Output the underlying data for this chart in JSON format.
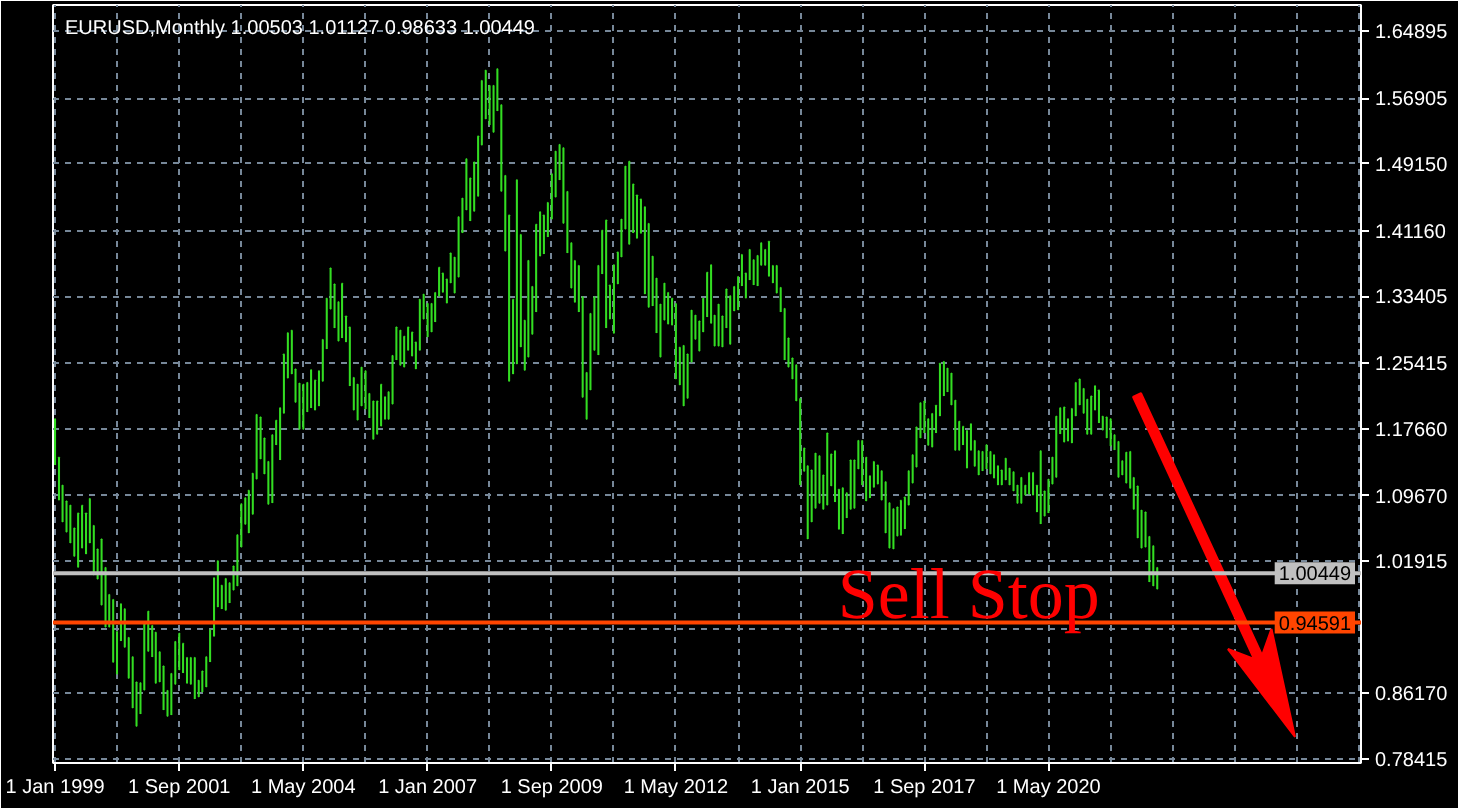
{
  "chart_data": {
    "type": "bar",
    "title": "EURUSD,Monthly 1.00503 1.01127 0.98633 1.00449",
    "color": "#33dd22",
    "x": [
      "1999-01",
      "1999-02",
      "1999-03",
      "1999-04",
      "1999-05",
      "1999-06",
      "1999-07",
      "1999-08",
      "1999-09",
      "1999-10",
      "1999-11",
      "1999-12",
      "2000-01",
      "2000-02",
      "2000-03",
      "2000-04",
      "2000-05",
      "2000-06",
      "2000-07",
      "2000-08",
      "2000-09",
      "2000-10",
      "2000-11",
      "2000-12",
      "2001-01",
      "2001-02",
      "2001-03",
      "2001-04",
      "2001-05",
      "2001-06",
      "2001-07",
      "2001-08",
      "2001-09",
      "2001-10",
      "2001-11",
      "2001-12",
      "2002-01",
      "2002-02",
      "2002-03",
      "2002-04",
      "2002-05",
      "2002-06",
      "2002-07",
      "2002-08",
      "2002-09",
      "2002-10",
      "2002-11",
      "2002-12",
      "2003-01",
      "2003-02",
      "2003-03",
      "2003-04",
      "2003-05",
      "2003-06",
      "2003-07",
      "2003-08",
      "2003-09",
      "2003-10",
      "2003-11",
      "2003-12",
      "2004-01",
      "2004-02",
      "2004-03",
      "2004-04",
      "2004-05",
      "2004-06",
      "2004-07",
      "2004-08",
      "2004-09",
      "2004-10",
      "2004-11",
      "2004-12",
      "2005-01",
      "2005-02",
      "2005-03",
      "2005-04",
      "2005-05",
      "2005-06",
      "2005-07",
      "2005-08",
      "2005-09",
      "2005-10",
      "2005-11",
      "2005-12",
      "2006-01",
      "2006-02",
      "2006-03",
      "2006-04",
      "2006-05",
      "2006-06",
      "2006-07",
      "2006-08",
      "2006-09",
      "2006-10",
      "2006-11",
      "2006-12",
      "2007-01",
      "2007-02",
      "2007-03",
      "2007-04",
      "2007-05",
      "2007-06",
      "2007-07",
      "2007-08",
      "2007-09",
      "2007-10",
      "2007-11",
      "2007-12",
      "2008-01",
      "2008-02",
      "2008-03",
      "2008-04",
      "2008-05",
      "2008-06",
      "2008-07",
      "2008-08",
      "2008-09",
      "2008-10",
      "2008-11",
      "2008-12",
      "2009-01",
      "2009-02",
      "2009-03",
      "2009-04",
      "2009-05",
      "2009-06",
      "2009-07",
      "2009-08",
      "2009-09",
      "2009-10",
      "2009-11",
      "2009-12",
      "2010-01",
      "2010-02",
      "2010-03",
      "2010-04",
      "2010-05",
      "2010-06",
      "2010-07",
      "2010-08",
      "2010-09",
      "2010-10",
      "2010-11",
      "2010-12",
      "2011-01",
      "2011-02",
      "2011-03",
      "2011-04",
      "2011-05",
      "2011-06",
      "2011-07",
      "2011-08",
      "2011-09",
      "2011-10",
      "2011-11",
      "2011-12",
      "2012-01",
      "2012-02",
      "2012-03",
      "2012-04",
      "2012-05",
      "2012-06",
      "2012-07",
      "2012-08",
      "2012-09",
      "2012-10",
      "2012-11",
      "2012-12",
      "2013-01",
      "2013-02",
      "2013-03",
      "2013-04",
      "2013-05",
      "2013-06",
      "2013-07",
      "2013-08",
      "2013-09",
      "2013-10",
      "2013-11",
      "2013-12",
      "2014-01",
      "2014-02",
      "2014-03",
      "2014-04",
      "2014-05",
      "2014-06",
      "2014-07",
      "2014-08",
      "2014-09",
      "2014-10",
      "2014-11",
      "2014-12",
      "2015-01",
      "2015-02",
      "2015-03",
      "2015-04",
      "2015-05",
      "2015-06",
      "2015-07",
      "2015-08",
      "2015-09",
      "2015-10",
      "2015-11",
      "2015-12",
      "2016-01",
      "2016-02",
      "2016-03",
      "2016-04",
      "2016-05",
      "2016-06",
      "2016-07",
      "2016-08",
      "2016-09",
      "2016-10",
      "2016-11",
      "2016-12",
      "2017-01",
      "2017-02",
      "2017-03",
      "2017-04",
      "2017-05",
      "2017-06",
      "2017-07",
      "2017-08",
      "2017-09",
      "2017-10",
      "2017-11",
      "2017-12",
      "2018-01",
      "2018-02",
      "2018-03",
      "2018-04",
      "2018-05",
      "2018-06",
      "2018-07",
      "2018-08",
      "2018-09",
      "2018-10",
      "2018-11",
      "2018-12",
      "2019-01",
      "2019-02",
      "2019-03",
      "2019-04",
      "2019-05",
      "2019-06",
      "2019-07",
      "2019-08",
      "2019-09",
      "2019-10",
      "2019-11",
      "2019-12",
      "2020-01",
      "2020-02",
      "2020-03",
      "2020-04",
      "2020-05",
      "2020-06",
      "2020-07",
      "2020-08",
      "2020-09",
      "2020-10",
      "2020-11",
      "2020-12",
      "2021-01",
      "2021-02",
      "2021-03",
      "2021-04",
      "2021-05",
      "2021-06",
      "2021-07",
      "2021-08",
      "2021-09",
      "2021-10",
      "2021-11",
      "2021-12",
      "2022-01",
      "2022-02",
      "2022-03",
      "2022-04",
      "2022-05",
      "2022-06",
      "2022-07",
      "2022-08",
      "2022-09"
    ],
    "base": [
      1.134,
      1.092,
      1.066,
      1.054,
      1.041,
      1.025,
      1.012,
      1.035,
      1.028,
      1.041,
      1.003,
      0.998,
      0.967,
      0.941,
      0.941,
      0.899,
      0.885,
      0.925,
      0.917,
      0.88,
      0.845,
      0.823,
      0.838,
      0.866,
      0.912,
      0.906,
      0.874,
      0.876,
      0.843,
      0.835,
      0.837,
      0.873,
      0.89,
      0.887,
      0.874,
      0.873,
      0.856,
      0.858,
      0.864,
      0.87,
      0.9,
      0.93,
      0.965,
      0.963,
      0.961,
      0.97,
      0.985,
      0.99,
      1.036,
      1.063,
      1.053,
      1.075,
      1.117,
      1.141,
      1.123,
      1.087,
      1.089,
      1.158,
      1.14,
      1.195,
      1.237,
      1.242,
      1.208,
      1.176,
      1.176,
      1.197,
      1.202,
      1.199,
      1.204,
      1.233,
      1.272,
      1.319,
      1.297,
      1.281,
      1.285,
      1.28,
      1.228,
      1.199,
      1.187,
      1.204,
      1.2,
      1.19,
      1.164,
      1.17,
      1.18,
      1.188,
      1.188,
      1.206,
      1.259,
      1.252,
      1.25,
      1.27,
      1.263,
      1.248,
      1.27,
      1.307,
      1.286,
      1.292,
      1.304,
      1.334,
      1.339,
      1.326,
      1.35,
      1.338,
      1.357,
      1.41,
      1.437,
      1.424,
      1.435,
      1.453,
      1.514,
      1.545,
      1.538,
      1.529,
      1.555,
      1.459,
      1.388,
      1.233,
      1.242,
      1.254,
      1.274,
      1.246,
      1.262,
      1.289,
      1.316,
      1.382,
      1.385,
      1.405,
      1.426,
      1.452,
      1.473,
      1.421,
      1.386,
      1.344,
      1.327,
      1.316,
      1.214,
      1.188,
      1.223,
      1.27,
      1.265,
      1.361,
      1.297,
      1.307,
      1.29,
      1.349,
      1.381,
      1.414,
      1.396,
      1.41,
      1.403,
      1.409,
      1.337,
      1.321,
      1.323,
      1.291,
      1.262,
      1.306,
      1.301,
      1.3,
      1.236,
      1.229,
      1.204,
      1.213,
      1.256,
      1.283,
      1.269,
      1.292,
      1.31,
      1.302,
      1.275,
      1.275,
      1.274,
      1.297,
      1.277,
      1.317,
      1.318,
      1.347,
      1.332,
      1.354,
      1.348,
      1.347,
      1.371,
      1.371,
      1.358,
      1.35,
      1.338,
      1.316,
      1.259,
      1.25,
      1.236,
      1.21,
      1.11,
      1.126,
      1.046,
      1.066,
      1.082,
      1.088,
      1.081,
      1.086,
      1.109,
      1.09,
      1.057,
      1.052,
      1.071,
      1.081,
      1.082,
      1.129,
      1.11,
      1.091,
      1.095,
      1.107,
      1.111,
      1.092,
      1.053,
      1.035,
      1.034,
      1.049,
      1.05,
      1.058,
      1.086,
      1.112,
      1.131,
      1.166,
      1.172,
      1.157,
      1.155,
      1.172,
      1.192,
      1.216,
      1.221,
      1.205,
      1.151,
      1.151,
      1.158,
      1.13,
      1.151,
      1.132,
      1.122,
      1.127,
      1.129,
      1.123,
      1.118,
      1.11,
      1.11,
      1.116,
      1.11,
      1.103,
      1.088,
      1.088,
      1.098,
      1.099,
      1.098,
      1.078,
      1.064,
      1.073,
      1.077,
      1.111,
      1.119,
      1.171,
      1.161,
      1.162,
      1.16,
      1.192,
      1.205,
      1.195,
      1.17,
      1.17,
      1.199,
      1.184,
      1.175,
      1.166,
      1.156,
      1.152,
      1.119,
      1.122,
      1.112,
      1.106,
      1.081,
      1.047,
      1.035,
      1.036,
      0.995,
      0.99,
      0.986
    ],
    "values": [
      0.054,
      0.05,
      0.043,
      0.036,
      0.044,
      0.033,
      0.064,
      0.05,
      0.048,
      0.052,
      0.058,
      0.035,
      0.078,
      0.07,
      0.038,
      0.074,
      0.05,
      0.043,
      0.045,
      0.048,
      0.06,
      0.052,
      0.036,
      0.078,
      0.047,
      0.036,
      0.06,
      0.035,
      0.051,
      0.03,
      0.048,
      0.05,
      0.043,
      0.034,
      0.03,
      0.031,
      0.048,
      0.019,
      0.024,
      0.035,
      0.037,
      0.069,
      0.054,
      0.027,
      0.037,
      0.023,
      0.028,
      0.06,
      0.051,
      0.031,
      0.05,
      0.048,
      0.076,
      0.049,
      0.042,
      0.05,
      0.08,
      0.028,
      0.061,
      0.07,
      0.053,
      0.051,
      0.039,
      0.054,
      0.053,
      0.034,
      0.044,
      0.035,
      0.041,
      0.049,
      0.059,
      0.048,
      0.051,
      0.046,
      0.064,
      0.03,
      0.069,
      0.038,
      0.042,
      0.045,
      0.045,
      0.028,
      0.045,
      0.039,
      0.049,
      0.026,
      0.032,
      0.057,
      0.038,
      0.041,
      0.036,
      0.027,
      0.028,
      0.031,
      0.06,
      0.029,
      0.039,
      0.033,
      0.034,
      0.034,
      0.022,
      0.028,
      0.035,
      0.042,
      0.071,
      0.04,
      0.06,
      0.05,
      0.058,
      0.071,
      0.076,
      0.057,
      0.046,
      0.055,
      0.049,
      0.102,
      0.089,
      0.197,
      0.088,
      0.218,
      0.133,
      0.059,
      0.114,
      0.056,
      0.103,
      0.052,
      0.045,
      0.04,
      0.053,
      0.054,
      0.041,
      0.089,
      0.072,
      0.053,
      0.049,
      0.054,
      0.119,
      0.055,
      0.09,
      0.063,
      0.105,
      0.051,
      0.127,
      0.04,
      0.081,
      0.037,
      0.044,
      0.074,
      0.098,
      0.057,
      0.051,
      0.04,
      0.103,
      0.099,
      0.058,
      0.064,
      0.062,
      0.043,
      0.037,
      0.031,
      0.089,
      0.044,
      0.071,
      0.052,
      0.061,
      0.028,
      0.035,
      0.039,
      0.052,
      0.069,
      0.036,
      0.049,
      0.036,
      0.045,
      0.057,
      0.028,
      0.039,
      0.036,
      0.029,
      0.035,
      0.029,
      0.035,
      0.026,
      0.018,
      0.041,
      0.02,
      0.032,
      0.028,
      0.06,
      0.034,
      0.024,
      0.042,
      0.102,
      0.027,
      0.086,
      0.061,
      0.065,
      0.056,
      0.04,
      0.085,
      0.037,
      0.06,
      0.047,
      0.054,
      0.029,
      0.058,
      0.057,
      0.033,
      0.052,
      0.051,
      0.025,
      0.03,
      0.022,
      0.034,
      0.06,
      0.053,
      0.047,
      0.034,
      0.041,
      0.037,
      0.04,
      0.033,
      0.047,
      0.041,
      0.037,
      0.031,
      0.039,
      0.032,
      0.062,
      0.04,
      0.027,
      0.037,
      0.059,
      0.034,
      0.021,
      0.044,
      0.031,
      0.03,
      0.028,
      0.022,
      0.028,
      0.026,
      0.027,
      0.022,
      0.017,
      0.025,
      0.019,
      0.022,
      0.021,
      0.03,
      0.011,
      0.025,
      0.026,
      0.031,
      0.086,
      0.029,
      0.039,
      0.031,
      0.072,
      0.03,
      0.041,
      0.026,
      0.04,
      0.039,
      0.03,
      0.029,
      0.041,
      0.045,
      0.028,
      0.038,
      0.016,
      0.024,
      0.032,
      0.017,
      0.042,
      0.016,
      0.036,
      0.043,
      0.037,
      0.061,
      0.044,
      0.041,
      0.053,
      0.047,
      0.025
    ],
    "xlim": [
      "1998-12-16",
      "2027-01-16"
    ],
    "ylim": [
      0.779,
      1.68
    ],
    "xticks": [
      {
        "value": "1999-01",
        "label": "1 Jan 1999"
      },
      {
        "value": "2000-05",
        "label": null
      },
      {
        "value": "2001-09",
        "label": "1 Sep 2001"
      },
      {
        "value": "2003-01",
        "label": null
      },
      {
        "value": "2004-05",
        "label": "1 May 2004"
      },
      {
        "value": "2005-09",
        "label": null
      },
      {
        "value": "2007-01",
        "label": "1 Jan 2007"
      },
      {
        "value": "2008-05",
        "label": null
      },
      {
        "value": "2009-09",
        "label": "1 Sep 2009"
      },
      {
        "value": "2011-01",
        "label": null
      },
      {
        "value": "2012-05",
        "label": "1 May 2012"
      },
      {
        "value": "2013-09",
        "label": null
      },
      {
        "value": "2015-01",
        "label": "1 Jan 2015"
      },
      {
        "value": "2016-05",
        "label": null
      },
      {
        "value": "2017-09",
        "label": "1 Sep 2017"
      },
      {
        "value": "2019-01",
        "label": null
      },
      {
        "value": "2020-05",
        "label": "1 May 2020"
      },
      {
        "value": "2021-09",
        "label": null
      },
      {
        "value": "2023-01",
        "label": null
      },
      {
        "value": "2024-05",
        "label": null
      },
      {
        "value": "2025-09",
        "label": null
      },
      {
        "value": "2027-01",
        "label": null
      }
    ],
    "yticks": [
      1.64895,
      1.56905,
      {
        "value": 1.4915,
        "label": "1.49150"
      },
      {
        "value": 1.4116,
        "label": "1.41160"
      },
      1.33405,
      1.25415,
      {
        "value": 1.1766,
        "label": "1.17660"
      },
      {
        "value": 1.0967,
        "label": "1.09670"
      },
      1.01915,
      {
        "value": 0.93925,
        "label": null
      },
      {
        "value": 0.8617,
        "label": "0.86170"
      },
      0.78415
    ],
    "grid": true,
    "ref_lines": [
      {
        "axis": "y",
        "value": 0.94591,
        "label": "0.94591",
        "color": "#ff4500"
      },
      {
        "axis": "y",
        "value": 1.00449,
        "label": "1.00449",
        "color": "#c0c0c0"
      }
    ],
    "annotations": [
      "Sell Stop"
    ]
  }
}
